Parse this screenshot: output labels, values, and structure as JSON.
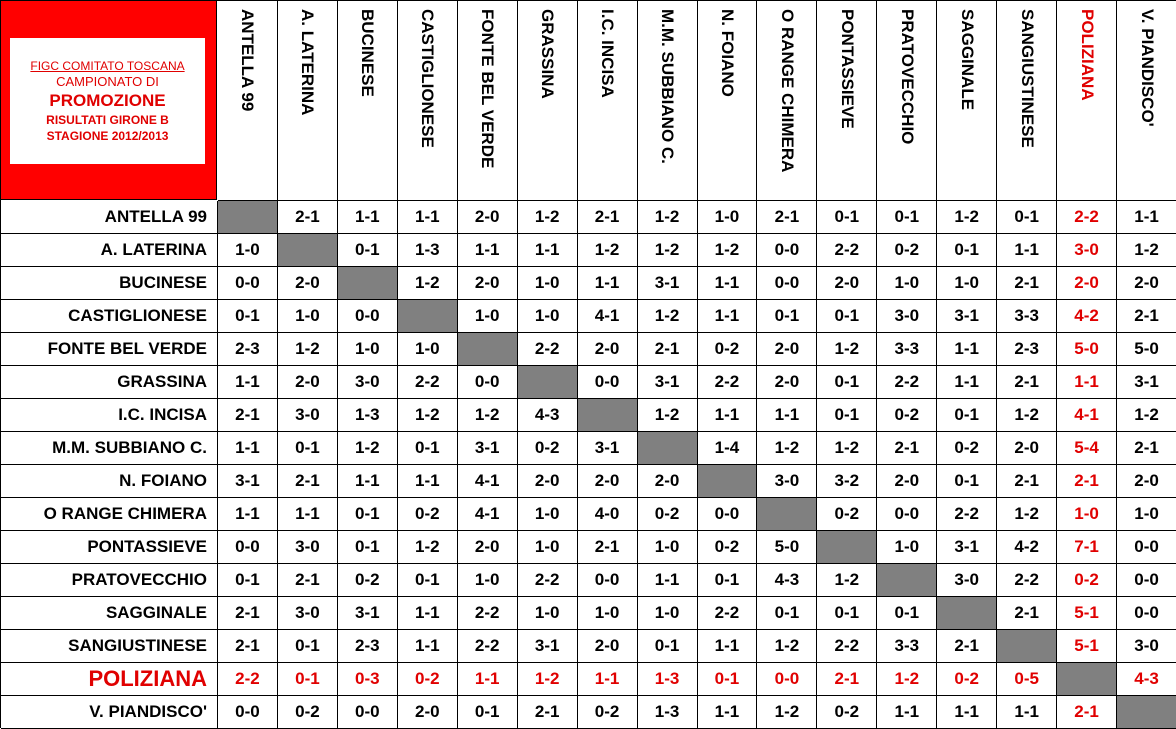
{
  "header": {
    "line1": "FIGC COMITATO TOSCANA",
    "line2": "CAMPIONATO DI",
    "line3": "PROMOZIONE",
    "line4": "RISULTATI GIRONE B",
    "line5": "STAGIONE 2012/2013"
  },
  "colors": {
    "highlight": "#e00000",
    "corner": "#ff0000",
    "self_cell": "#808080"
  },
  "highlight_team_index": 14,
  "teams": [
    "ANTELLA 99",
    "A. LATERINA",
    "BUCINESE",
    "CASTIGLIONESE",
    "FONTE BEL VERDE",
    "GRASSINA",
    "I.C. INCISA",
    "M.M. SUBBIANO C.",
    "N. FOIANO",
    "O RANGE CHIMERA",
    "PONTASSIEVE",
    "PRATOVECCHIO",
    "SAGGINALE",
    "SANGIUSTINESE",
    "POLIZIANA",
    "V. PIANDISCO'"
  ],
  "results": [
    [
      "",
      "2-1",
      "1-1",
      "1-1",
      "2-0",
      "1-2",
      "2-1",
      "1-2",
      "1-0",
      "2-1",
      "0-1",
      "0-1",
      "1-2",
      "0-1",
      "2-2",
      "1-1"
    ],
    [
      "1-0",
      "",
      "0-1",
      "1-3",
      "1-1",
      "1-1",
      "1-2",
      "1-2",
      "1-2",
      "0-0",
      "2-2",
      "0-2",
      "0-1",
      "1-1",
      "3-0",
      "1-2"
    ],
    [
      "0-0",
      "2-0",
      "",
      "1-2",
      "2-0",
      "1-0",
      "1-1",
      "3-1",
      "1-1",
      "0-0",
      "2-0",
      "1-0",
      "1-0",
      "2-1",
      "2-0",
      "2-0"
    ],
    [
      "0-1",
      "1-0",
      "0-0",
      "",
      "1-0",
      "1-0",
      "4-1",
      "1-2",
      "1-1",
      "0-1",
      "0-1",
      "3-0",
      "3-1",
      "3-3",
      "4-2",
      "2-1"
    ],
    [
      "2-3",
      "1-2",
      "1-0",
      "1-0",
      "",
      "2-2",
      "2-0",
      "2-1",
      "0-2",
      "2-0",
      "1-2",
      "3-3",
      "1-1",
      "2-3",
      "5-0",
      "5-0"
    ],
    [
      "1-1",
      "2-0",
      "3-0",
      "2-2",
      "0-0",
      "",
      "0-0",
      "3-1",
      "2-2",
      "2-0",
      "0-1",
      "2-2",
      "1-1",
      "2-1",
      "1-1",
      "3-1"
    ],
    [
      "2-1",
      "3-0",
      "1-3",
      "1-2",
      "1-2",
      "4-3",
      "",
      "1-2",
      "1-1",
      "1-1",
      "0-1",
      "0-2",
      "0-1",
      "1-2",
      "4-1",
      "1-2"
    ],
    [
      "1-1",
      "0-1",
      "1-2",
      "0-1",
      "3-1",
      "0-2",
      "3-1",
      "",
      "1-4",
      "1-2",
      "1-2",
      "2-1",
      "0-2",
      "2-0",
      "5-4",
      "2-1"
    ],
    [
      "3-1",
      "2-1",
      "1-1",
      "1-1",
      "4-1",
      "2-0",
      "2-0",
      "2-0",
      "",
      "3-0",
      "3-2",
      "2-0",
      "0-1",
      "2-1",
      "2-1",
      "2-0"
    ],
    [
      "1-1",
      "1-1",
      "0-1",
      "0-2",
      "4-1",
      "1-0",
      "4-0",
      "0-2",
      "0-0",
      "",
      "0-2",
      "0-0",
      "2-2",
      "1-2",
      "1-0",
      "1-0"
    ],
    [
      "0-0",
      "3-0",
      "0-1",
      "1-2",
      "2-0",
      "1-0",
      "2-1",
      "1-0",
      "0-2",
      "5-0",
      "",
      "1-0",
      "3-1",
      "4-2",
      "7-1",
      "0-0"
    ],
    [
      "0-1",
      "2-1",
      "0-2",
      "0-1",
      "1-0",
      "2-2",
      "0-0",
      "1-1",
      "0-1",
      "4-3",
      "1-2",
      "",
      "3-0",
      "2-2",
      "0-2",
      "0-0"
    ],
    [
      "2-1",
      "3-0",
      "3-1",
      "1-1",
      "2-2",
      "1-0",
      "1-0",
      "1-0",
      "2-2",
      "0-1",
      "0-1",
      "0-1",
      "",
      "2-1",
      "5-1",
      "0-0"
    ],
    [
      "2-1",
      "0-1",
      "2-3",
      "1-1",
      "2-2",
      "3-1",
      "2-0",
      "0-1",
      "1-1",
      "1-2",
      "2-2",
      "3-3",
      "2-1",
      "",
      "5-1",
      "3-0"
    ],
    [
      "2-2",
      "0-1",
      "0-3",
      "0-2",
      "1-1",
      "1-2",
      "1-1",
      "1-3",
      "0-1",
      "0-0",
      "2-1",
      "1-2",
      "0-2",
      "0-5",
      "",
      "4-3"
    ],
    [
      "0-0",
      "0-2",
      "0-0",
      "2-0",
      "0-1",
      "2-1",
      "0-2",
      "1-3",
      "1-1",
      "1-2",
      "0-2",
      "1-1",
      "1-1",
      "1-1",
      "2-1",
      ""
    ]
  ]
}
